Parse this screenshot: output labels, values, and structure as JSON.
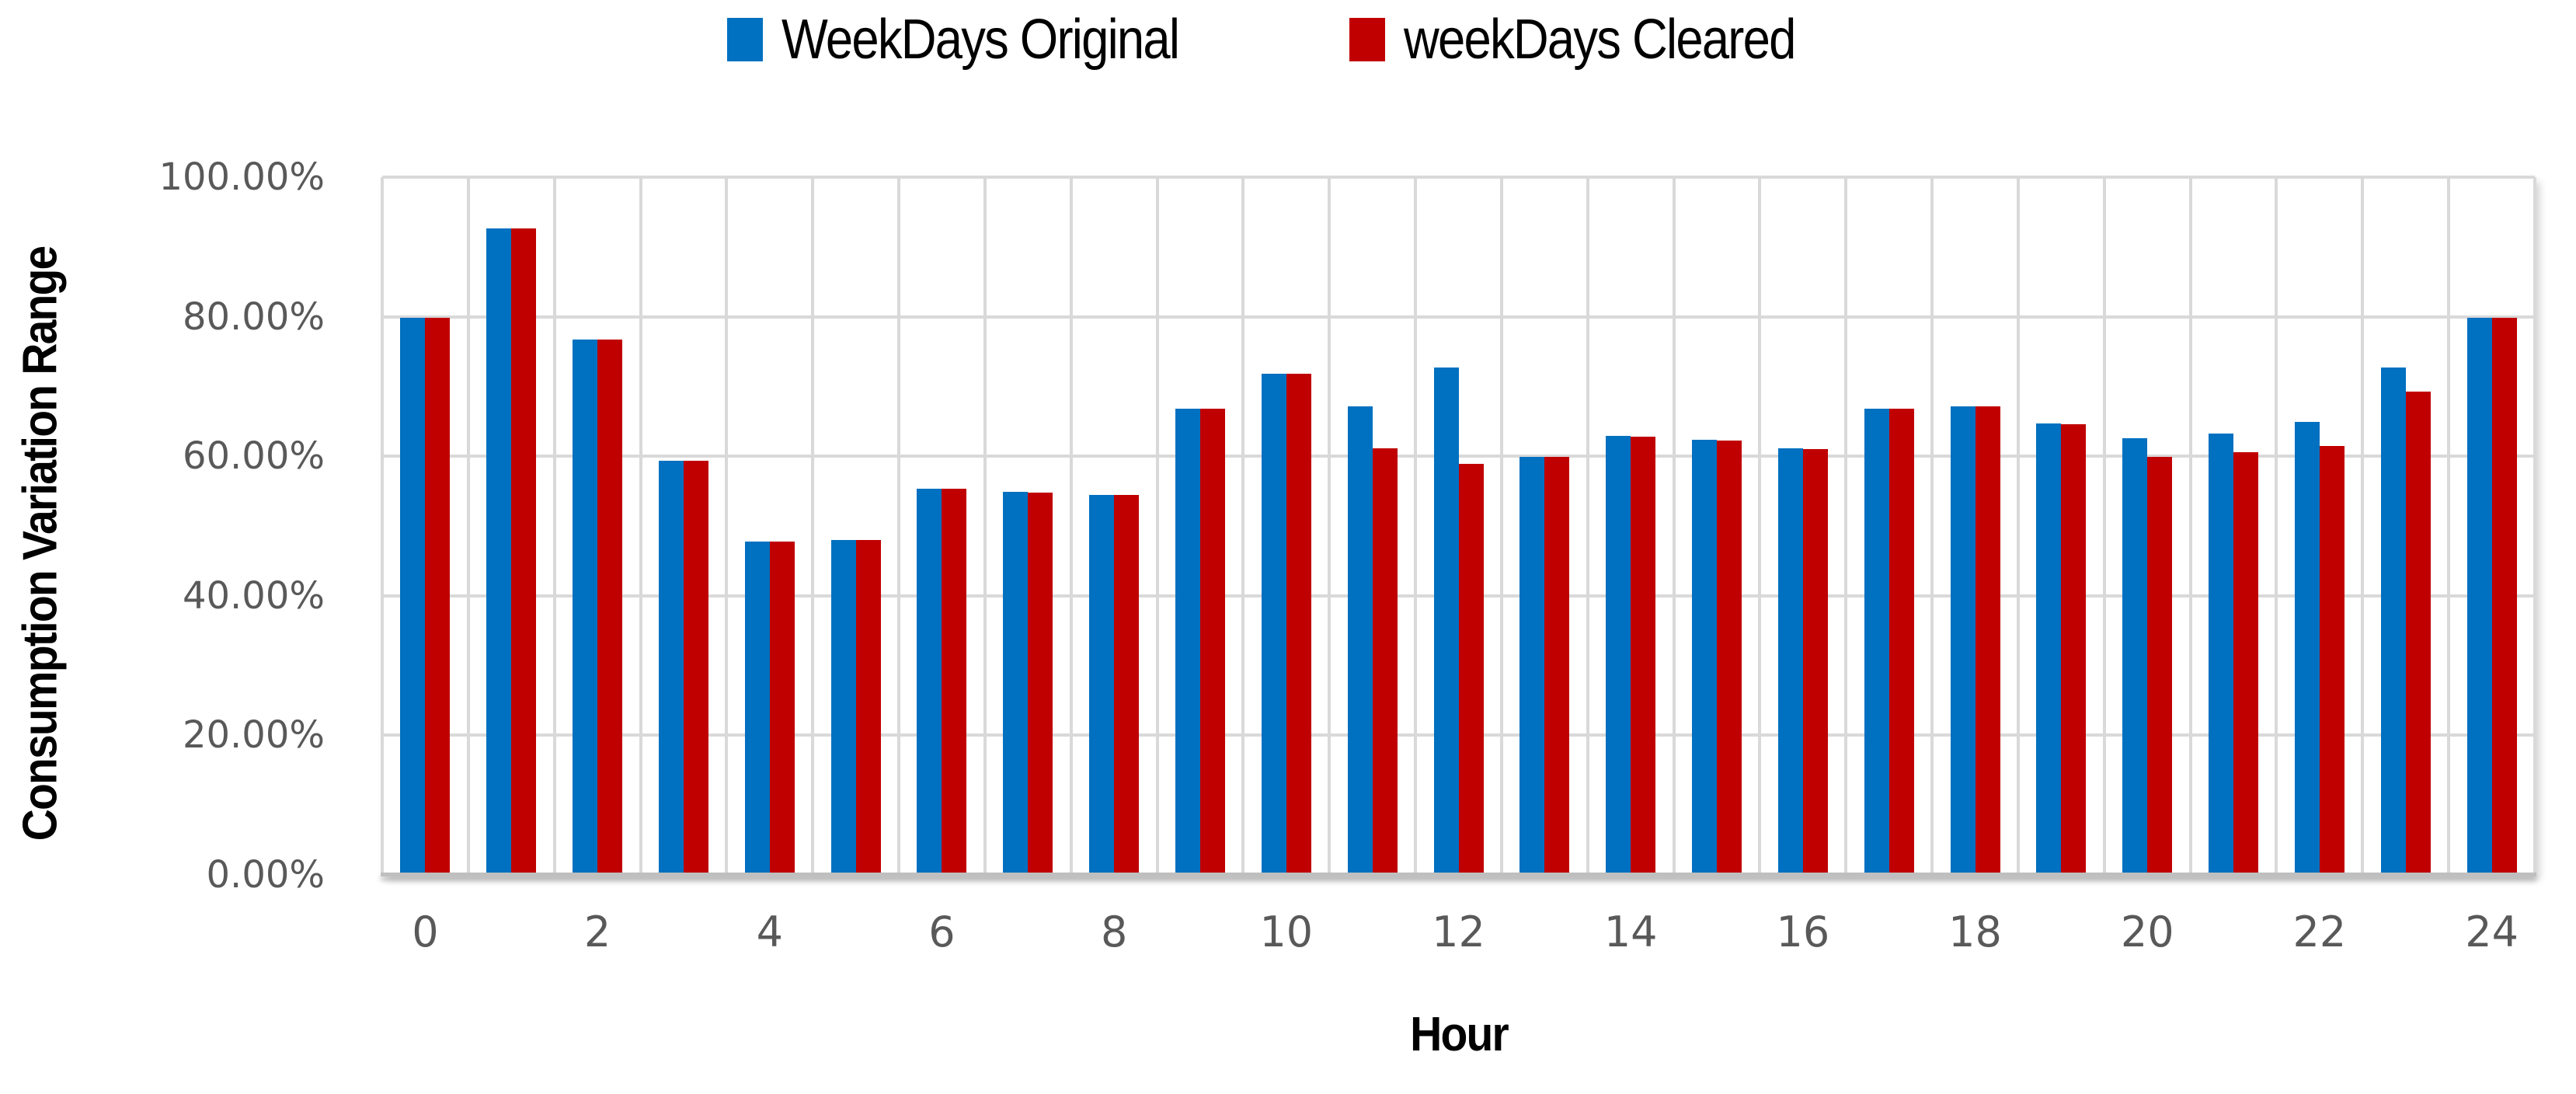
{
  "chart_data": {
    "type": "bar",
    "title": "",
    "categories": [
      0,
      1,
      2,
      3,
      4,
      5,
      6,
      7,
      8,
      9,
      10,
      11,
      12,
      13,
      14,
      15,
      16,
      17,
      18,
      19,
      20,
      21,
      22,
      23,
      24
    ],
    "series": [
      {
        "name": "WeekDays Original",
        "color": "#0070C0",
        "values": [
          79.8,
          92.6,
          76.7,
          59.4,
          47.8,
          48.0,
          55.4,
          54.9,
          54.5,
          66.8,
          71.8,
          67.2,
          72.7,
          59.9,
          62.9,
          62.4,
          61.1,
          66.8,
          67.2,
          64.7,
          62.6,
          63.2,
          64.9,
          72.7,
          79.8
        ]
      },
      {
        "name": "weekDays Cleared",
        "color": "#C00000",
        "values": [
          79.8,
          92.6,
          76.7,
          59.4,
          47.8,
          48.0,
          55.3,
          54.8,
          54.5,
          66.8,
          71.8,
          61.1,
          58.9,
          59.9,
          62.8,
          62.2,
          61.0,
          66.8,
          67.2,
          64.6,
          59.9,
          60.6,
          61.5,
          69.3,
          79.8
        ]
      }
    ],
    "xlabel": "Hour",
    "ylabel": "Consumption Variation Range",
    "ylim": [
      0,
      100
    ],
    "y_tick_step": 20,
    "y_tick_labels": [
      "0.00%",
      "20.00%",
      "40.00%",
      "60.00%",
      "80.00%",
      "100.00%"
    ],
    "x_tick_labels_shown": [
      "0",
      "2",
      "4",
      "6",
      "8",
      "10",
      "12",
      "14",
      "16",
      "18",
      "20",
      "22",
      "24"
    ],
    "grid": true,
    "legend_position": "top-center"
  },
  "style": {
    "grid_color": "#D9D9D9",
    "axis_line_color": "#BFBFBF",
    "tick_text_color": "#595959",
    "title_text_color": "#000000",
    "background_color": "#FFFFFF"
  }
}
